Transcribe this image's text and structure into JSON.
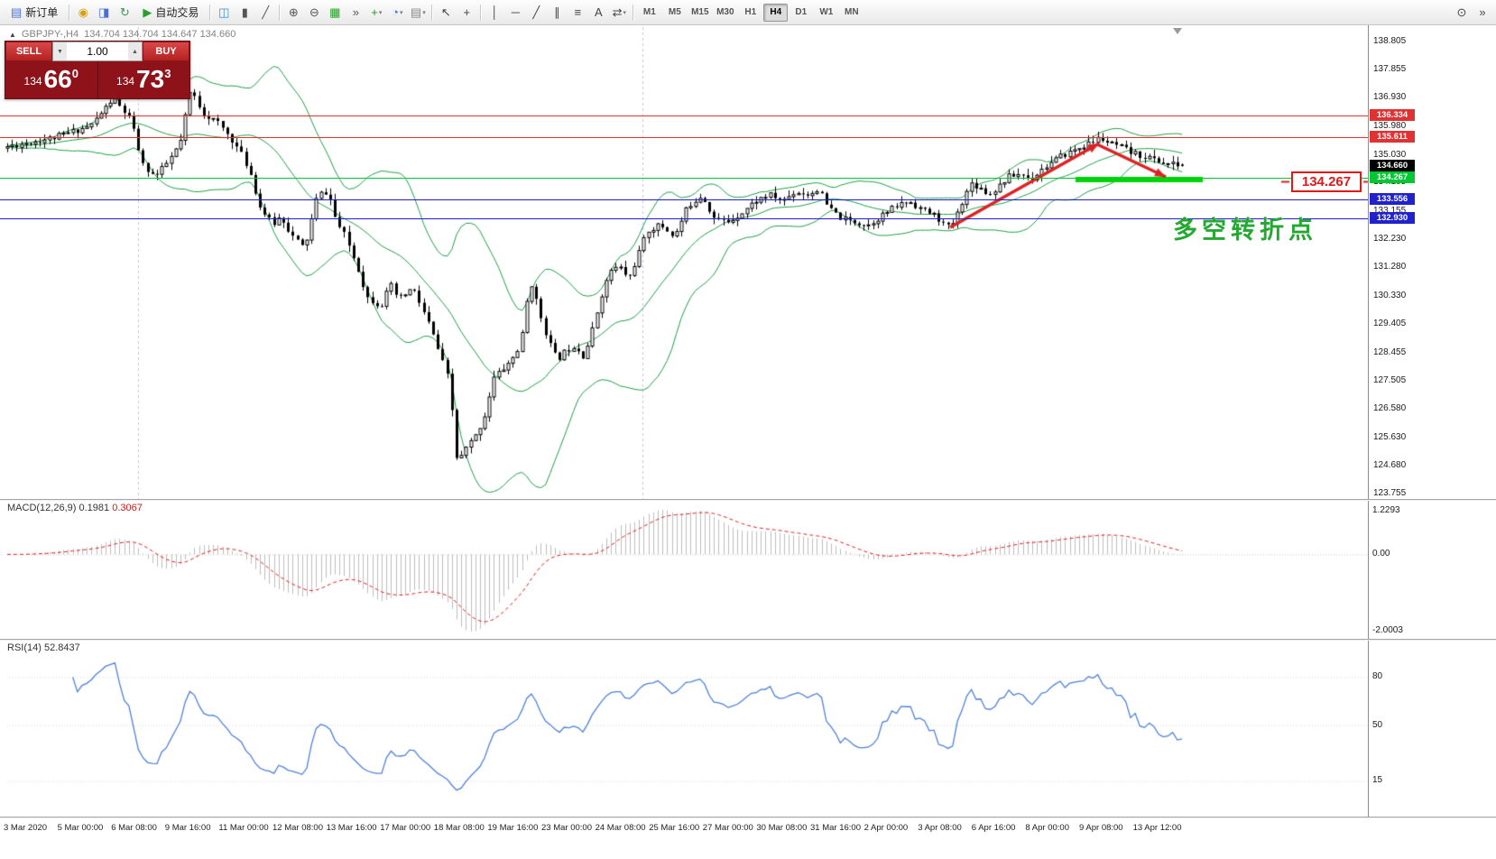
{
  "toolbar": {
    "timeframes": [
      "M1",
      "M5",
      "M15",
      "M30",
      "H1",
      "H4",
      "D1",
      "W1",
      "MN"
    ],
    "active_timeframe": "H4",
    "items": [
      {
        "type": "button",
        "name": "new-order-button",
        "icon_name": "new-order-icon",
        "glyph": "▤",
        "color": "#4a6fd4",
        "label": "新订单"
      },
      {
        "type": "sep"
      },
      {
        "type": "icon",
        "name": "coins-icon",
        "glyph": "◉",
        "color": "#d4a017"
      },
      {
        "type": "icon",
        "name": "accounts-icon",
        "glyph": "◨",
        "color": "#4a6fd4"
      },
      {
        "type": "icon",
        "name": "refresh-icon",
        "glyph": "↻",
        "color": "#2e9e52"
      },
      {
        "type": "button",
        "name": "auto-trading-button",
        "icon_name": "auto-trading-icon",
        "glyph": "▶",
        "color": "#2aa02a",
        "label": "自动交易"
      },
      {
        "type": "sep"
      },
      {
        "type": "icon",
        "name": "bar-chart-icon",
        "glyph": "◫",
        "color": "#3c8fd0"
      },
      {
        "type": "icon",
        "name": "candlestick-chart-icon",
        "glyph": "▮",
        "color": "#555555"
      },
      {
        "type": "icon",
        "name": "line-chart-icon",
        "glyph": "╱",
        "color": "#555555"
      },
      {
        "type": "sep"
      },
      {
        "type": "icon",
        "name": "zoom-in-icon",
        "glyph": "⊕",
        "color": "#555555"
      },
      {
        "type": "icon",
        "name": "zoom-out-icon",
        "glyph": "⊖",
        "color": "#555555"
      },
      {
        "type": "icon",
        "name": "tile-windows-icon",
        "glyph": "▦",
        "color": "#2aa02a"
      },
      {
        "type": "icon",
        "name": "auto-scroll-icon",
        "glyph": "»",
        "color": "#555555"
      },
      {
        "type": "icon",
        "name": "indicators-icon",
        "glyph": "+",
        "color": "#1e9e1e",
        "dropdown": true
      },
      {
        "type": "icon",
        "name": "periods-icon",
        "glyph": "◔",
        "color": "#4a6fd4",
        "dropdown": true
      },
      {
        "type": "icon",
        "name": "templates-icon",
        "glyph": "▤",
        "color": "#888888",
        "dropdown": true
      },
      {
        "type": "sep"
      },
      {
        "type": "icon",
        "name": "cursor-icon",
        "glyph": "↖",
        "color": "#444444"
      },
      {
        "type": "icon",
        "name": "crosshair-icon",
        "glyph": "+",
        "color": "#444444"
      },
      {
        "type": "sep"
      },
      {
        "type": "icon",
        "name": "vertical-line-icon",
        "glyph": "│",
        "color": "#444444"
      },
      {
        "type": "icon",
        "name": "horizontal-line-icon",
        "glyph": "─",
        "color": "#444444"
      },
      {
        "type": "icon",
        "name": "trendline-icon",
        "glyph": "╱",
        "color": "#444444"
      },
      {
        "type": "icon",
        "name": "equidistant-channel-icon",
        "glyph": "∥",
        "color": "#444444"
      },
      {
        "type": "icon",
        "name": "fibonacci-icon",
        "glyph": "≡",
        "color": "#444444"
      },
      {
        "type": "icon",
        "name": "text-label-icon",
        "glyph": "A",
        "color": "#444444"
      },
      {
        "type": "icon",
        "name": "arrow-objects-icon",
        "glyph": "⇄",
        "color": "#444444",
        "dropdown": true
      },
      {
        "type": "sep"
      },
      {
        "type": "tf-group"
      },
      {
        "type": "spacer"
      },
      {
        "type": "icon",
        "name": "search-icon",
        "glyph": "⊙",
        "color": "#444444"
      },
      {
        "type": "icon",
        "name": "scroll-to-end-icon",
        "glyph": "»",
        "color": "#444444"
      }
    ]
  },
  "chart": {
    "symbol_label": "GBPJPY-,H4",
    "ohlc_label": "134.704 134.704 134.647 134.660",
    "current_price": "134.660",
    "annotation_text": "多空转折点",
    "annotation_color": "#25a832",
    "callout_price": "134.267",
    "trade_panel": {
      "sell_label": "SELL",
      "buy_label": "BUY",
      "lot": "1.00",
      "lot_down_glyph": "▼",
      "lot_up_glyph": "▲",
      "sell_prefix": "134",
      "sell_pips": "66",
      "sell_sup": "0",
      "buy_prefix": "134",
      "buy_pips": "73",
      "buy_sup": "3"
    },
    "hlines": [
      {
        "price": 136.334,
        "label": "136.334",
        "color": "#e03232"
      },
      {
        "price": 135.611,
        "label": "135.611",
        "color": "#e03232"
      },
      {
        "price": 134.267,
        "label": "134.267",
        "color": "#00c832"
      },
      {
        "price": 133.556,
        "label": "133.556",
        "color": "#2222cc"
      },
      {
        "price": 132.93,
        "label": "132.930",
        "color": "#2222cc"
      }
    ]
  },
  "chart_data": {
    "type": "candlestick",
    "symbol": "GBPJPY-",
    "timeframe": "H4",
    "title": "GBPJPY-,H4",
    "last_ohlc": {
      "open": 134.704,
      "high": 134.704,
      "low": 134.647,
      "close": 134.66
    },
    "ylim": [
      123.58,
      139.34
    ],
    "y_axis_ticks": [
      "138.805",
      "137.855",
      "136.930",
      "135.980",
      "135.030",
      "134.105",
      "133.155",
      "132.230",
      "131.280",
      "130.330",
      "129.405",
      "128.455",
      "127.505",
      "126.580",
      "125.630",
      "124.680",
      "123.755"
    ],
    "x_axis_labels": [
      "3 Mar 2020",
      "5 Mar 00:00",
      "6 Mar 08:00",
      "9 Mar 16:00",
      "11 Mar 00:00",
      "12 Mar 08:00",
      "13 Mar 16:00",
      "17 Mar 00:00",
      "18 Mar 08:00",
      "19 Mar 16:00",
      "23 Mar 00:00",
      "24 Mar 08:00",
      "25 Mar 16:00",
      "27 Mar 00:00",
      "30 Mar 08:00",
      "31 Mar 16:00",
      "2 Apr 00:00",
      "3 Apr 08:00",
      "6 Apr 16:00",
      "8 Apr 00:00",
      "9 Apr 08:00",
      "13 Apr 12:00"
    ],
    "num_candles": 252,
    "seed": 11,
    "price_path": [
      [
        0,
        135.3
      ],
      [
        0.04,
        135.6
      ],
      [
        0.071,
        136.0
      ],
      [
        0.09,
        136.9
      ],
      [
        0.105,
        136.2
      ],
      [
        0.115,
        134.7
      ],
      [
        0.126,
        134.3
      ],
      [
        0.137,
        134.8
      ],
      [
        0.147,
        135.4
      ],
      [
        0.156,
        137.2
      ],
      [
        0.167,
        136.4
      ],
      [
        0.179,
        136.1
      ],
      [
        0.19,
        135.6
      ],
      [
        0.2,
        135.0
      ],
      [
        0.207,
        134.4
      ],
      [
        0.215,
        133.3
      ],
      [
        0.226,
        132.7
      ],
      [
        0.233,
        133.0
      ],
      [
        0.241,
        132.4
      ],
      [
        0.253,
        131.9
      ],
      [
        0.264,
        133.7
      ],
      [
        0.273,
        133.8
      ],
      [
        0.28,
        132.8
      ],
      [
        0.288,
        132.3
      ],
      [
        0.299,
        131.2
      ],
      [
        0.306,
        130.3
      ],
      [
        0.318,
        130.0
      ],
      [
        0.326,
        130.7
      ],
      [
        0.333,
        130.2
      ],
      [
        0.345,
        130.6
      ],
      [
        0.352,
        130.0
      ],
      [
        0.36,
        129.3
      ],
      [
        0.368,
        128.4
      ],
      [
        0.376,
        127.5
      ],
      [
        0.383,
        124.75
      ],
      [
        0.391,
        125.3
      ],
      [
        0.399,
        125.7
      ],
      [
        0.406,
        126.3
      ],
      [
        0.414,
        127.6
      ],
      [
        0.422,
        127.9
      ],
      [
        0.429,
        128.2
      ],
      [
        0.437,
        128.7
      ],
      [
        0.445,
        130.9
      ],
      [
        0.452,
        129.9
      ],
      [
        0.46,
        128.9
      ],
      [
        0.468,
        128.2
      ],
      [
        0.475,
        128.5
      ],
      [
        0.483,
        128.7
      ],
      [
        0.491,
        128.3
      ],
      [
        0.498,
        129.2
      ],
      [
        0.506,
        130.4
      ],
      [
        0.514,
        131.2
      ],
      [
        0.521,
        131.3
      ],
      [
        0.529,
        130.9
      ],
      [
        0.537,
        131.7
      ],
      [
        0.545,
        132.5
      ],
      [
        0.556,
        132.7
      ],
      [
        0.568,
        132.3
      ],
      [
        0.579,
        133.3
      ],
      [
        0.591,
        133.7
      ],
      [
        0.602,
        132.9
      ],
      [
        0.614,
        132.8
      ],
      [
        0.625,
        133.1
      ],
      [
        0.637,
        133.5
      ],
      [
        0.648,
        133.7
      ],
      [
        0.66,
        133.5
      ],
      [
        0.671,
        133.8
      ],
      [
        0.683,
        133.7
      ],
      [
        0.69,
        133.9
      ],
      [
        0.698,
        133.3
      ],
      [
        0.71,
        132.9
      ],
      [
        0.721,
        132.8
      ],
      [
        0.733,
        132.7
      ],
      [
        0.744,
        133.0
      ],
      [
        0.756,
        133.3
      ],
      [
        0.767,
        133.5
      ],
      [
        0.779,
        133.2
      ],
      [
        0.79,
        133.0
      ],
      [
        0.8,
        132.6
      ],
      [
        0.806,
        132.8
      ],
      [
        0.813,
        133.5
      ],
      [
        0.821,
        134.1
      ],
      [
        0.829,
        133.9
      ],
      [
        0.836,
        133.7
      ],
      [
        0.844,
        134.0
      ],
      [
        0.852,
        134.3
      ],
      [
        0.863,
        134.4
      ],
      [
        0.871,
        134.2
      ],
      [
        0.879,
        134.5
      ],
      [
        0.886,
        134.7
      ],
      [
        0.898,
        135.0
      ],
      [
        0.909,
        135.2
      ],
      [
        0.921,
        135.4
      ],
      [
        0.93,
        135.6
      ],
      [
        0.938,
        135.4
      ],
      [
        0.947,
        135.3
      ],
      [
        0.956,
        135.1
      ],
      [
        0.965,
        135.0
      ],
      [
        0.975,
        134.9
      ],
      [
        0.984,
        134.75
      ],
      [
        0.994,
        134.7
      ],
      [
        1,
        134.66
      ]
    ],
    "overlays": {
      "bollinger": {
        "period": 20,
        "deviation": 2,
        "color": "#1d9e45"
      }
    },
    "indicators": {
      "macd": {
        "name": "MACD(12,26,9)",
        "main_value": "0.1981",
        "signal_value": "0.3067",
        "scale_max_label": "1.2293",
        "scale_zero_label": "0.00",
        "scale_min_label": "-2.0003",
        "histogram_color": "#bdbdbd",
        "signal_color": "#e02020"
      },
      "rsi": {
        "name": "RSI(14)",
        "value": "52.8437",
        "period": 14,
        "levels": [
          80,
          50,
          15
        ],
        "line_color": "#4f81d8"
      }
    },
    "drawings": {
      "arrow_color": "#dd2222",
      "trend_arrows": [
        {
          "from": [
            1053,
            252
          ],
          "to": [
            1218,
            159
          ]
        },
        {
          "from": [
            1216,
            160
          ],
          "to": [
            1292,
            196
          ]
        }
      ],
      "support_segment": {
        "x0": 1192,
        "x1": 1333,
        "price": 134.21,
        "color": "#00d500"
      },
      "v_separators": [
        153,
        712
      ]
    }
  }
}
